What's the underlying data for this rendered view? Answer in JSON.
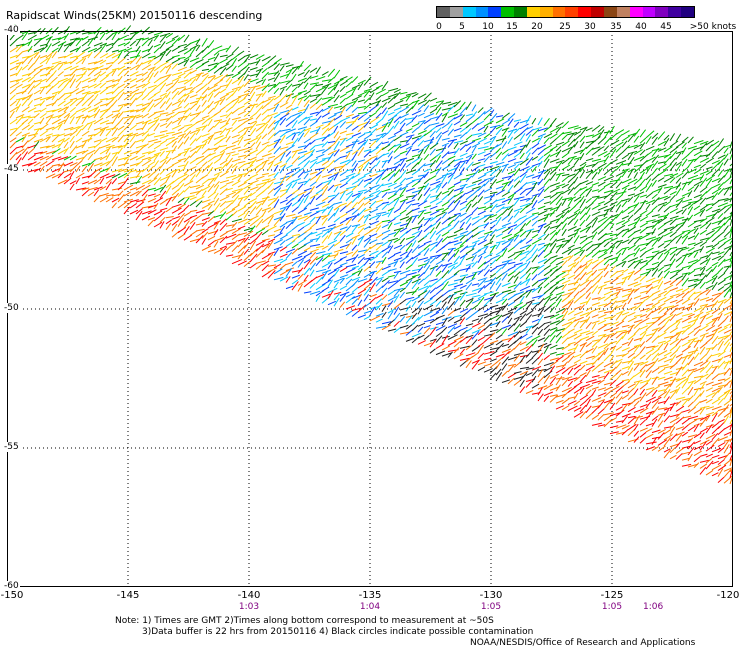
{
  "title": "Rapidscat Winds(25KM) 20150116 descending",
  "colorbar": {
    "colors": [
      "#606060",
      "#a0a0a0",
      "#00c8ff",
      "#0090ff",
      "#0040ff",
      "#00c000",
      "#008000",
      "#ffd000",
      "#ffb000",
      "#ff7000",
      "#ff4000",
      "#ff0000",
      "#c00000",
      "#8b4513",
      "#c08060",
      "#ff00ff",
      "#c000ff",
      "#8000c0",
      "#4000a0",
      "#200080"
    ],
    "labels": [
      "0",
      "5",
      "10",
      "15",
      "20",
      "25",
      "30",
      "35",
      "40",
      "45",
      ">50 knots"
    ]
  },
  "map": {
    "lon_ticks": [
      "-150",
      "-145",
      "-140",
      "-135",
      "-130",
      "-125",
      "-120"
    ],
    "lat_ticks": [
      "-40",
      "-45",
      "-50",
      "-55",
      "-60"
    ],
    "time_labels": [
      {
        "lon": -140,
        "text": "1:03"
      },
      {
        "lon": -135,
        "text": "1:04"
      },
      {
        "lon": -130,
        "text": "1:05"
      },
      {
        "lon": -125,
        "text": "1:05"
      },
      {
        "lon": -123.3,
        "text": "1:06"
      }
    ]
  },
  "notes": {
    "line1": "Note: 1) Times are GMT 2)Times along bottom correspond to measurement at ~50S",
    "line2": "3)Data buffer is 22 hrs from 20150116 4) Black circles indicate possible contamination",
    "credit": "NOAA/NESDIS/Office of Research and Applications"
  }
}
